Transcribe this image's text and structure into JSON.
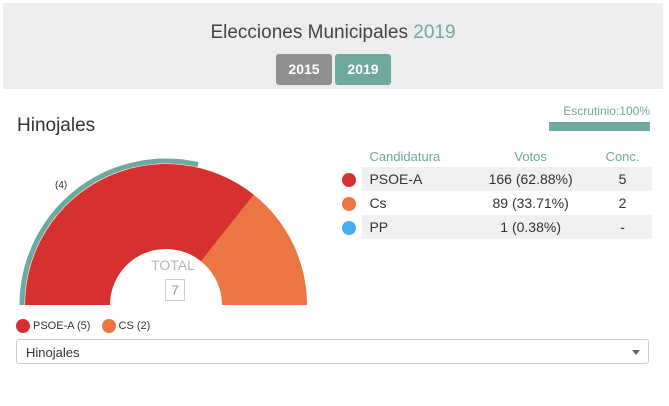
{
  "header": {
    "title_prefix": "Elecciones Municipales",
    "title_year": "2019",
    "buttons": [
      {
        "label": "2015",
        "active": false
      },
      {
        "label": "2019",
        "active": true
      }
    ]
  },
  "municipality": "Hinojales",
  "scrutiny": {
    "label": "Escrutinio:100%",
    "percent": 100
  },
  "chart": {
    "total_label": "TOTAL",
    "total_value": "7",
    "majority_label": "(4)",
    "majority_seats": 4,
    "seat_segments": [
      {
        "party": "PSOE-A",
        "seats": 5,
        "color": "#d63031"
      },
      {
        "party": "CS",
        "seats": 2,
        "color": "#ec7544"
      }
    ],
    "majority_arc_color": "#6ea89f"
  },
  "table": {
    "headers": {
      "candidatura": "Candidatura",
      "votos": "Votos",
      "conc": "Conc."
    },
    "rows": [
      {
        "name": "PSOE-A",
        "votes": "166 (62.88%)",
        "conc": "5",
        "color": "#d63031"
      },
      {
        "name": "Cs",
        "votes": "89 (33.71%)",
        "conc": "2",
        "color": "#ec7544"
      },
      {
        "name": "PP",
        "votes": "1 (0.38%)",
        "conc": "-",
        "color": "#42aef0"
      }
    ]
  },
  "legend": [
    {
      "label": "PSOE-A (5)",
      "color": "#d63031"
    },
    {
      "label": "CS (2)",
      "color": "#ec7544"
    }
  ],
  "selector": {
    "value": "Hinojales"
  }
}
